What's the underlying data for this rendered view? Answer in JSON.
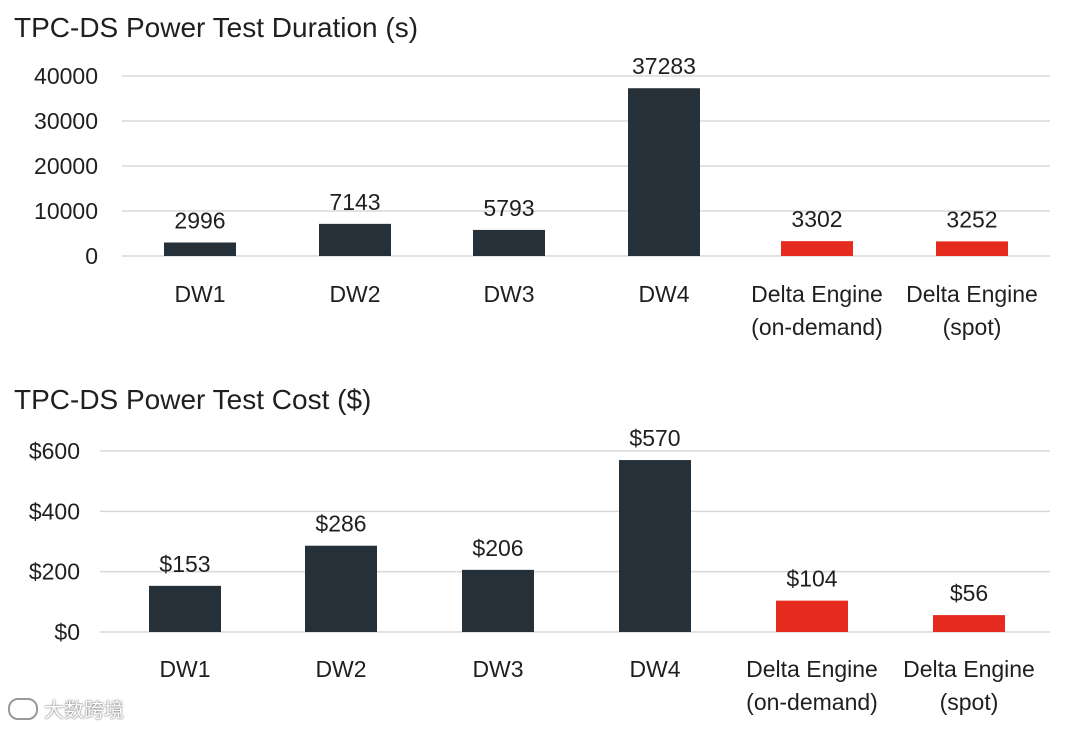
{
  "chart_data": [
    {
      "type": "bar",
      "title": "TPC-DS Power Test Duration (s)",
      "categories": [
        "DW1",
        "DW2",
        "DW3",
        "DW4",
        "Delta Engine\n(on-demand)",
        "Delta Engine\n(spot)"
      ],
      "values": [
        2996,
        7143,
        5793,
        37283,
        3302,
        3252
      ],
      "value_labels": [
        "2996",
        "7143",
        "5793",
        "37283",
        "3302",
        "3252"
      ],
      "yticks": [
        0,
        10000,
        20000,
        30000,
        40000
      ],
      "ytick_labels": [
        "0",
        "10000",
        "20000",
        "30000",
        "40000"
      ],
      "ylim": [
        0,
        40000
      ],
      "colors": [
        "#253038",
        "#253038",
        "#253038",
        "#253038",
        "#e52b1f",
        "#e52b1f"
      ],
      "grid": true,
      "xlabel": "",
      "ylabel": ""
    },
    {
      "type": "bar",
      "title": "TPC-DS Power Test Cost ($)",
      "categories": [
        "DW1",
        "DW2",
        "DW3",
        "DW4",
        "Delta Engine\n(on-demand)",
        "Delta Engine\n(spot)"
      ],
      "values": [
        153,
        286,
        206,
        570,
        104,
        56
      ],
      "value_labels": [
        "$153",
        "$286",
        "$206",
        "$570",
        "$104",
        "$56"
      ],
      "yticks": [
        0,
        200,
        400,
        600
      ],
      "ytick_labels": [
        "$0",
        "$200",
        "$400",
        "$600"
      ],
      "ylim": [
        0,
        600
      ],
      "colors": [
        "#253038",
        "#253038",
        "#253038",
        "#253038",
        "#e52b1f",
        "#e52b1f"
      ],
      "grid": true,
      "xlabel": "",
      "ylabel": ""
    }
  ],
  "watermark": {
    "text": "大数跨境"
  }
}
